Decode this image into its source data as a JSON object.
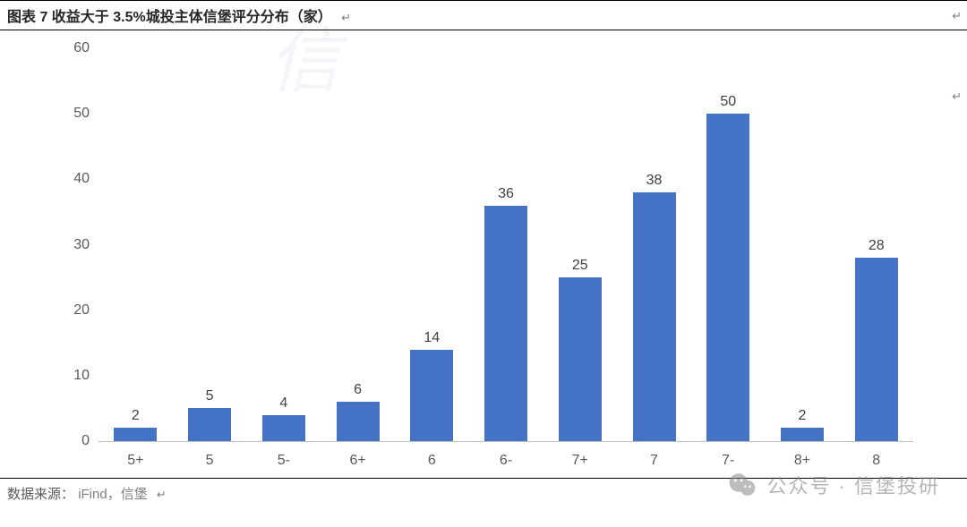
{
  "title": "图表 7 收益大于 3.5%城投主体信堡评分分布（家）",
  "para_mark": "↵",
  "source_label": "数据来源：",
  "source_value": "iFind，信堡",
  "watermark_overlay": "公众号 · 信堡投研",
  "chart": {
    "type": "bar",
    "categories": [
      "5+",
      "5",
      "5-",
      "6+",
      "6",
      "6-",
      "7+",
      "7",
      "7-",
      "8+",
      "8"
    ],
    "values": [
      2,
      5,
      4,
      6,
      14,
      36,
      25,
      38,
      50,
      2,
      28
    ],
    "ylim": [
      0,
      60
    ],
    "ytick_step": 10,
    "bar_color": "#4472c4",
    "bar_width": 0.58,
    "title_fontsize": 16,
    "label_fontsize": 16,
    "value_label_color": "#404040",
    "axis_label_color": "#595959",
    "background_color": "#ffffff",
    "axis_line_color": "#bfbfbf",
    "grid": false
  }
}
